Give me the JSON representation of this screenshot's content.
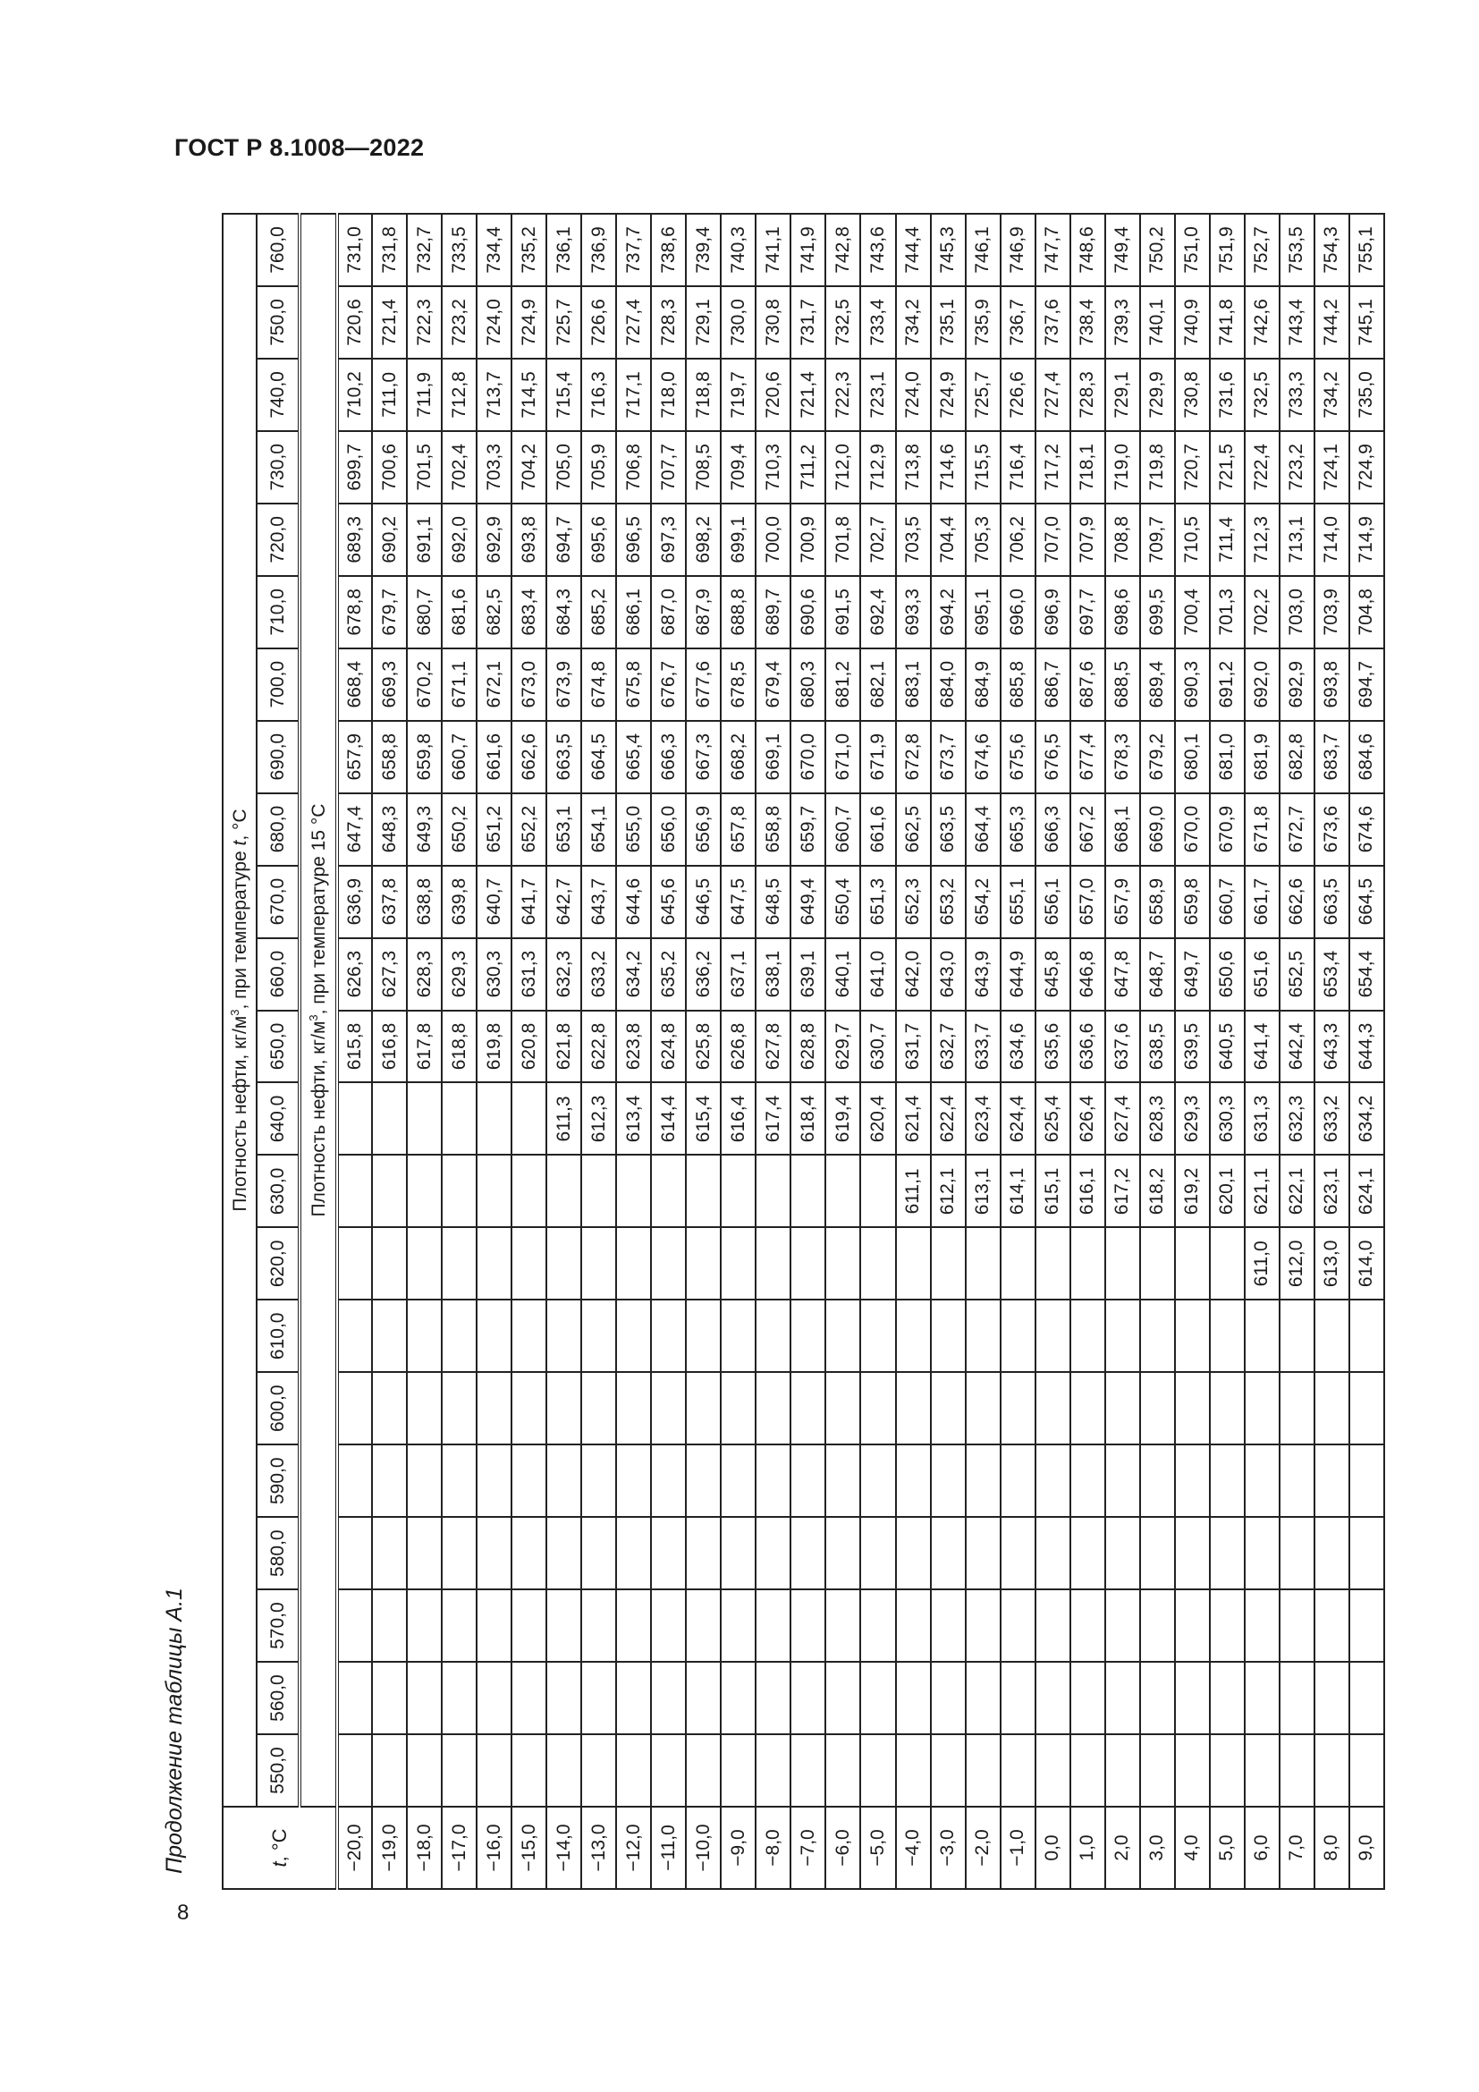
{
  "document": {
    "header": "ГОСТ Р 8.1008—2022",
    "page_number": "8",
    "caption": "Продолжение таблицы А.1"
  },
  "table": {
    "t_header": {
      "symbol": "t",
      "unit": ", °C"
    },
    "group_header": {
      "pre": "Плотность нефти, кг/м",
      "sup": "3",
      "mid": ", при температуре ",
      "t": "t",
      "post": ", °C"
    },
    "sub_header": {
      "pre": "Плотность нефти, кг/м",
      "sup": "3",
      "post": ", при температуре 15 °C"
    },
    "columns": [
      "550,0",
      "560,0",
      "570,0",
      "580,0",
      "590,0",
      "600,0",
      "610,0",
      "620,0",
      "630,0",
      "640,0",
      "650,0",
      "660,0",
      "670,0",
      "680,0",
      "690,0",
      "700,0",
      "710,0",
      "720,0",
      "730,0",
      "740,0",
      "750,0",
      "760,0"
    ],
    "temperatures": [
      "−20,0",
      "−19,0",
      "−18,0",
      "−17,0",
      "−16,0",
      "−15,0",
      "−14,0",
      "−13,0",
      "−12,0",
      "−11,0",
      "−10,0",
      "−9,0",
      "−8,0",
      "−7,0",
      "−6,0",
      "−5,0",
      "−4,0",
      "−3,0",
      "−2,0",
      "−1,0",
      "0,0",
      "1,0",
      "2,0",
      "3,0",
      "4,0",
      "5,0",
      "6,0",
      "7,0",
      "8,0",
      "9,0"
    ],
    "values_by_column": {
      "550,0": [],
      "560,0": [],
      "570,0": [],
      "580,0": [],
      "590,0": [],
      "600,0": [],
      "610,0": [],
      "620,0": [
        null,
        null,
        null,
        null,
        null,
        null,
        null,
        null,
        null,
        null,
        null,
        null,
        null,
        null,
        null,
        null,
        null,
        null,
        null,
        null,
        null,
        null,
        null,
        null,
        null,
        null,
        "611,0",
        "612,0",
        "613,0",
        "614,0"
      ],
      "630,0": [
        null,
        null,
        null,
        null,
        null,
        null,
        null,
        null,
        null,
        null,
        null,
        null,
        null,
        null,
        null,
        null,
        "611,1",
        "612,1",
        "613,1",
        "614,1",
        "615,1",
        "616,1",
        "617,2",
        "618,2",
        "619,2",
        "620,1",
        "621,1",
        "622,1",
        "623,1",
        "624,1"
      ],
      "640,0": [
        null,
        null,
        null,
        null,
        null,
        null,
        "611,3",
        "612,3",
        "613,4",
        "614,4",
        "615,4",
        "616,4",
        "617,4",
        "618,4",
        "619,4",
        "620,4",
        "621,4",
        "622,4",
        "623,4",
        "624,4",
        "625,4",
        "626,4",
        "627,4",
        "628,3",
        "629,3",
        "630,3",
        "631,3",
        "632,3",
        "633,2",
        "634,2"
      ],
      "650,0": [
        "615,8",
        "616,8",
        "617,8",
        "618,8",
        "619,8",
        "620,8",
        "621,8",
        "622,8",
        "623,8",
        "624,8",
        "625,8",
        "626,8",
        "627,8",
        "628,8",
        "629,7",
        "630,7",
        "631,7",
        "632,7",
        "633,7",
        "634,6",
        "635,6",
        "636,6",
        "637,6",
        "638,5",
        "639,5",
        "640,5",
        "641,4",
        "642,4",
        "643,3",
        "644,3"
      ],
      "660,0": [
        "626,3",
        "627,3",
        "628,3",
        "629,3",
        "630,3",
        "631,3",
        "632,3",
        "633,2",
        "634,2",
        "635,2",
        "636,2",
        "637,1",
        "638,1",
        "639,1",
        "640,1",
        "641,0",
        "642,0",
        "643,0",
        "643,9",
        "644,9",
        "645,8",
        "646,8",
        "647,8",
        "648,7",
        "649,7",
        "650,6",
        "651,6",
        "652,5",
        "653,4",
        "654,4"
      ],
      "670,0": [
        "636,9",
        "637,8",
        "638,8",
        "639,8",
        "640,7",
        "641,7",
        "642,7",
        "643,7",
        "644,6",
        "645,6",
        "646,5",
        "647,5",
        "648,5",
        "649,4",
        "650,4",
        "651,3",
        "652,3",
        "653,2",
        "654,2",
        "655,1",
        "656,1",
        "657,0",
        "657,9",
        "658,9",
        "659,8",
        "660,7",
        "661,7",
        "662,6",
        "663,5",
        "664,5"
      ],
      "680,0": [
        "647,4",
        "648,3",
        "649,3",
        "650,2",
        "651,2",
        "652,2",
        "653,1",
        "654,1",
        "655,0",
        "656,0",
        "656,9",
        "657,8",
        "658,8",
        "659,7",
        "660,7",
        "661,6",
        "662,5",
        "663,5",
        "664,4",
        "665,3",
        "666,3",
        "667,2",
        "668,1",
        "669,0",
        "670,0",
        "670,9",
        "671,8",
        "672,7",
        "673,6",
        "674,6"
      ],
      "690,0": [
        "657,9",
        "658,8",
        "659,8",
        "660,7",
        "661,6",
        "662,6",
        "663,5",
        "664,5",
        "665,4",
        "666,3",
        "667,3",
        "668,2",
        "669,1",
        "670,0",
        "671,0",
        "671,9",
        "672,8",
        "673,7",
        "674,6",
        "675,6",
        "676,5",
        "677,4",
        "678,3",
        "679,2",
        "680,1",
        "681,0",
        "681,9",
        "682,8",
        "683,7",
        "684,6"
      ],
      "700,0": [
        "668,4",
        "669,3",
        "670,2",
        "671,1",
        "672,1",
        "673,0",
        "673,9",
        "674,8",
        "675,8",
        "676,7",
        "677,6",
        "678,5",
        "679,4",
        "680,3",
        "681,2",
        "682,1",
        "683,1",
        "684,0",
        "684,9",
        "685,8",
        "686,7",
        "687,6",
        "688,5",
        "689,4",
        "690,3",
        "691,2",
        "692,0",
        "692,9",
        "693,8",
        "694,7"
      ],
      "710,0": [
        "678,8",
        "679,7",
        "680,7",
        "681,6",
        "682,5",
        "683,4",
        "684,3",
        "685,2",
        "686,1",
        "687,0",
        "687,9",
        "688,8",
        "689,7",
        "690,6",
        "691,5",
        "692,4",
        "693,3",
        "694,2",
        "695,1",
        "696,0",
        "696,9",
        "697,7",
        "698,6",
        "699,5",
        "700,4",
        "701,3",
        "702,2",
        "703,0",
        "703,9",
        "704,8"
      ],
      "720,0": [
        "689,3",
        "690,2",
        "691,1",
        "692,0",
        "692,9",
        "693,8",
        "694,7",
        "695,6",
        "696,5",
        "697,3",
        "698,2",
        "699,1",
        "700,0",
        "700,9",
        "701,8",
        "702,7",
        "703,5",
        "704,4",
        "705,3",
        "706,2",
        "707,0",
        "707,9",
        "708,8",
        "709,7",
        "710,5",
        "711,4",
        "712,3",
        "713,1",
        "714,0",
        "714,9"
      ],
      "730,0": [
        "699,7",
        "700,6",
        "701,5",
        "702,4",
        "703,3",
        "704,2",
        "705,0",
        "705,9",
        "706,8",
        "707,7",
        "708,5",
        "709,4",
        "710,3",
        "711,2",
        "712,0",
        "712,9",
        "713,8",
        "714,6",
        "715,5",
        "716,4",
        "717,2",
        "718,1",
        "719,0",
        "719,8",
        "720,7",
        "721,5",
        "722,4",
        "723,2",
        "724,1",
        "724,9"
      ],
      "740,0": [
        "710,2",
        "711,0",
        "711,9",
        "712,8",
        "713,7",
        "714,5",
        "715,4",
        "716,3",
        "717,1",
        "718,0",
        "718,8",
        "719,7",
        "720,6",
        "721,4",
        "722,3",
        "723,1",
        "724,0",
        "724,9",
        "725,7",
        "726,6",
        "727,4",
        "728,3",
        "729,1",
        "729,9",
        "730,8",
        "731,6",
        "732,5",
        "733,3",
        "734,2",
        "735,0"
      ],
      "750,0": [
        "720,6",
        "721,4",
        "722,3",
        "723,2",
        "724,0",
        "724,9",
        "725,7",
        "726,6",
        "727,4",
        "728,3",
        "729,1",
        "730,0",
        "730,8",
        "731,7",
        "732,5",
        "733,4",
        "734,2",
        "735,1",
        "735,9",
        "736,7",
        "737,6",
        "738,4",
        "739,3",
        "740,1",
        "740,9",
        "741,8",
        "742,6",
        "743,4",
        "744,2",
        "745,1"
      ],
      "760,0": [
        "731,0",
        "731,8",
        "732,7",
        "733,5",
        "734,4",
        "735,2",
        "736,1",
        "736,9",
        "737,7",
        "738,6",
        "739,4",
        "740,3",
        "741,1",
        "741,9",
        "742,8",
        "743,6",
        "744,4",
        "745,3",
        "746,1",
        "746,9",
        "747,7",
        "748,6",
        "749,4",
        "750,2",
        "751,0",
        "751,9",
        "752,7",
        "753,5",
        "754,3",
        "755,1"
      ]
    }
  }
}
